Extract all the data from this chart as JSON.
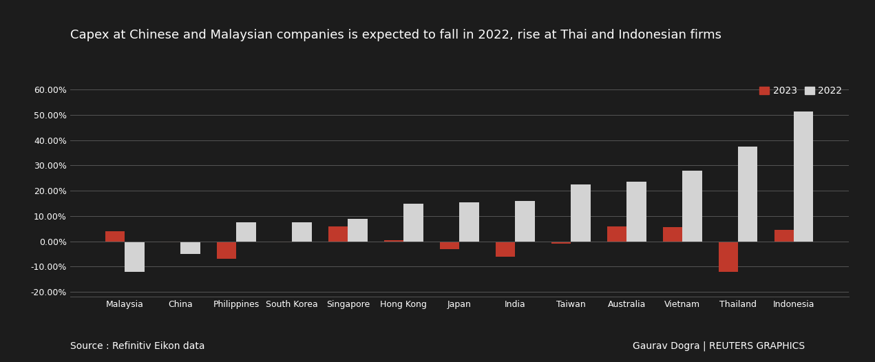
{
  "title": "Capex at Chinese and Malaysian companies is expected to fall in 2022, rise at Thai and Indonesian firms",
  "categories": [
    "Malaysia",
    "China",
    "Philippines",
    "South Korea",
    "Singapore",
    "Hong Kong",
    "Japan",
    "India",
    "Taiwan",
    "Australia",
    "Vietnam",
    "Thailand",
    "Indonesia"
  ],
  "values_2023": [
    0.04,
    -0.005,
    -0.07,
    -0.005,
    0.06,
    0.005,
    -0.03,
    -0.06,
    -0.01,
    0.06,
    0.055,
    -0.12,
    0.045
  ],
  "values_2022": [
    -0.12,
    -0.05,
    0.075,
    0.075,
    0.09,
    0.15,
    0.155,
    0.16,
    0.225,
    0.235,
    0.28,
    0.375,
    0.515
  ],
  "color_2023": "#C0392B",
  "color_2022": "#D3D3D3",
  "background_color": "#1c1c1c",
  "text_color": "#ffffff",
  "grid_color": "#555555",
  "ylim": [
    -0.22,
    0.64
  ],
  "yticks": [
    -0.2,
    -0.1,
    0.0,
    0.1,
    0.2,
    0.3,
    0.4,
    0.5,
    0.6
  ],
  "source_text": "Source : Refinitiv Eikon data",
  "credit_text": "Gaurav Dogra | REUTERS GRAPHICS",
  "legend_2023": "2023",
  "legend_2022": "2022",
  "title_fontsize": 13,
  "label_fontsize": 10,
  "tick_fontsize": 9,
  "bar_width": 0.35
}
